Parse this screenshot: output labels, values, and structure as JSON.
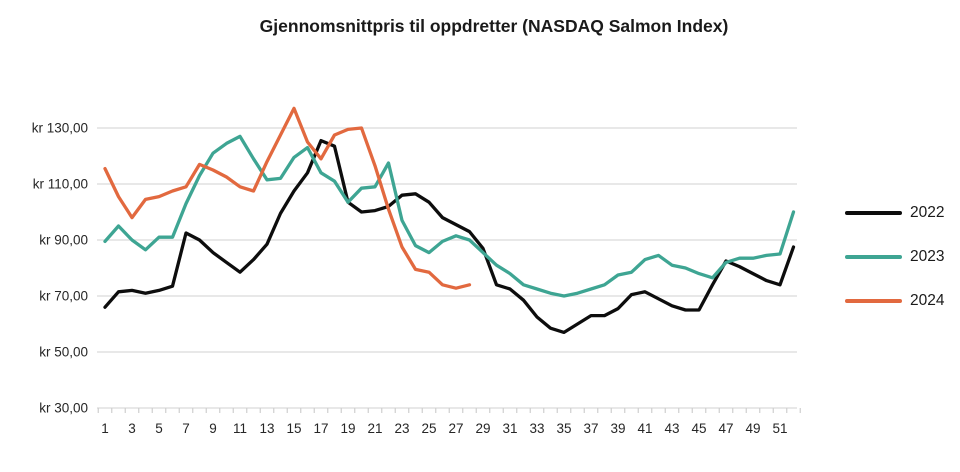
{
  "chart_data": {
    "type": "line",
    "title": "Gjennomsnittpris til oppdretter (NASDAQ Salmon Index)",
    "xlabel": "",
    "ylabel": "",
    "x_unit": "week",
    "x_range": [
      1,
      52
    ],
    "x_ticks_shown": [
      1,
      3,
      5,
      7,
      9,
      11,
      13,
      15,
      17,
      19,
      21,
      23,
      25,
      27,
      29,
      31,
      33,
      35,
      37,
      39,
      41,
      43,
      45,
      47,
      49,
      51
    ],
    "y_axis": {
      "ticks": [
        130,
        110,
        90,
        70,
        50,
        30
      ],
      "tick_labels": [
        "kr 130,00",
        "kr 110,00",
        "kr 90,00",
        "kr 70,00",
        "kr 50,00",
        "kr 30,00"
      ],
      "currency": "kr"
    },
    "grid": true,
    "legend_position": "right",
    "series": [
      {
        "name": "2022",
        "color": "#0d0d0d",
        "start_week": 1,
        "values": [
          66,
          71.5,
          72,
          71,
          72,
          73.5,
          92.5,
          90,
          85.5,
          82,
          78.5,
          83,
          88.5,
          99.5,
          107.5,
          114,
          125.5,
          123.5,
          103.5,
          100,
          100.5,
          102,
          106,
          106.5,
          103.5,
          98,
          95.5,
          93,
          87,
          74,
          72.5,
          68.5,
          62.5,
          58.5,
          57,
          60,
          63,
          63,
          65.5,
          70.5,
          71.5,
          69,
          66.5,
          65,
          65,
          74,
          82.5,
          80.5,
          78,
          75.5,
          74,
          87.5
        ]
      },
      {
        "name": "2023",
        "color": "#3ea593",
        "start_week": 1,
        "values": [
          89.5,
          95,
          90,
          86.5,
          91,
          91,
          103,
          113,
          121,
          124.5,
          127,
          119,
          111.5,
          112,
          119.5,
          123,
          114,
          111,
          103.5,
          108.5,
          109,
          117.5,
          97,
          88,
          85.5,
          89.5,
          91.5,
          90,
          85.5,
          81,
          78,
          74,
          72.5,
          71,
          70,
          71,
          72.5,
          74,
          77.5,
          78.5,
          83,
          84.5,
          81,
          80,
          78,
          76.5,
          82,
          83.5,
          83.5,
          84.5,
          85,
          100
        ]
      },
      {
        "name": "2024",
        "color": "#e2693f",
        "start_week": 1,
        "values": [
          115.5,
          105.5,
          98,
          104.5,
          105.5,
          107.5,
          109,
          117,
          115,
          112.5,
          109,
          107.5,
          118,
          127.5,
          137,
          125,
          119,
          127.5,
          129.5,
          130,
          116.5,
          101,
          87.5,
          79.5,
          78.5,
          74,
          72.8,
          74
        ]
      }
    ]
  },
  "legend": {
    "items": [
      {
        "label": "2022",
        "color": "#0d0d0d"
      },
      {
        "label": "2023",
        "color": "#3ea593"
      },
      {
        "label": "2024",
        "color": "#e2693f"
      }
    ]
  },
  "colors": {
    "background": "#ffffff",
    "gridline": "#d9d9d9",
    "tick": "#cfcfcf",
    "axis_text": "#262626",
    "title_text": "#1a1a1a"
  }
}
